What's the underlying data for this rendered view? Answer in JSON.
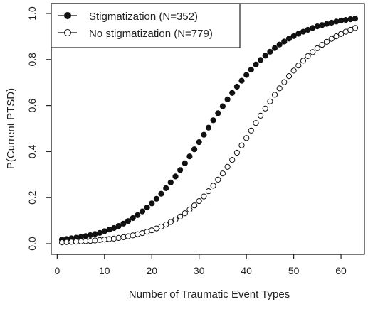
{
  "chart_data": {
    "type": "scatter",
    "title": "",
    "xlabel": "Number of Traumatic Event Types",
    "ylabel": "P(Current PTSD)",
    "xlim": [
      1,
      63
    ],
    "ylim": [
      0,
      1
    ],
    "xticks": [
      0,
      10,
      20,
      30,
      40,
      50,
      60
    ],
    "yticks": [
      0.0,
      0.2,
      0.4,
      0.6,
      0.8,
      1.0
    ],
    "ytick_labels": [
      "0.0",
      "0.2",
      "0.4",
      "0.6",
      "0.8",
      "1.0"
    ],
    "grid": false,
    "legend_position": "top-left",
    "x": [
      1,
      2,
      3,
      4,
      5,
      6,
      7,
      8,
      9,
      10,
      11,
      12,
      13,
      14,
      15,
      16,
      17,
      18,
      19,
      20,
      21,
      22,
      23,
      24,
      25,
      26,
      27,
      28,
      29,
      30,
      31,
      32,
      33,
      34,
      35,
      36,
      37,
      38,
      39,
      40,
      41,
      42,
      43,
      44,
      45,
      46,
      47,
      48,
      49,
      50,
      51,
      52,
      53,
      54,
      55,
      56,
      57,
      58,
      59,
      60,
      61,
      62,
      63
    ],
    "series": [
      {
        "name": "Stigmatization (N=352)",
        "marker": "filled-circle",
        "color": "#111111",
        "values": [
          0.018,
          0.02,
          0.023,
          0.026,
          0.029,
          0.033,
          0.037,
          0.042,
          0.047,
          0.054,
          0.061,
          0.068,
          0.077,
          0.087,
          0.098,
          0.111,
          0.124,
          0.14,
          0.157,
          0.175,
          0.195,
          0.217,
          0.241,
          0.266,
          0.292,
          0.32,
          0.349,
          0.379,
          0.41,
          0.441,
          0.473,
          0.504,
          0.536,
          0.567,
          0.597,
          0.627,
          0.655,
          0.682,
          0.708,
          0.733,
          0.756,
          0.778,
          0.798,
          0.817,
          0.834,
          0.85,
          0.865,
          0.878,
          0.891,
          0.902,
          0.912,
          0.921,
          0.929,
          0.937,
          0.944,
          0.95,
          0.955,
          0.96,
          0.965,
          0.969,
          0.972,
          0.975,
          0.978
        ]
      },
      {
        "name": "No stigmatization (N=779)",
        "marker": "open-circle",
        "color": "#111111",
        "values": [
          0.006,
          0.007,
          0.008,
          0.009,
          0.01,
          0.011,
          0.012,
          0.014,
          0.016,
          0.018,
          0.02,
          0.022,
          0.025,
          0.028,
          0.032,
          0.036,
          0.041,
          0.046,
          0.052,
          0.058,
          0.066,
          0.074,
          0.083,
          0.094,
          0.105,
          0.118,
          0.132,
          0.148,
          0.166,
          0.185,
          0.205,
          0.228,
          0.252,
          0.278,
          0.305,
          0.334,
          0.364,
          0.395,
          0.427,
          0.459,
          0.491,
          0.524,
          0.556,
          0.587,
          0.618,
          0.647,
          0.675,
          0.702,
          0.728,
          0.752,
          0.774,
          0.795,
          0.815,
          0.832,
          0.849,
          0.864,
          0.877,
          0.89,
          0.901,
          0.911,
          0.921,
          0.929,
          0.937
        ]
      }
    ]
  }
}
